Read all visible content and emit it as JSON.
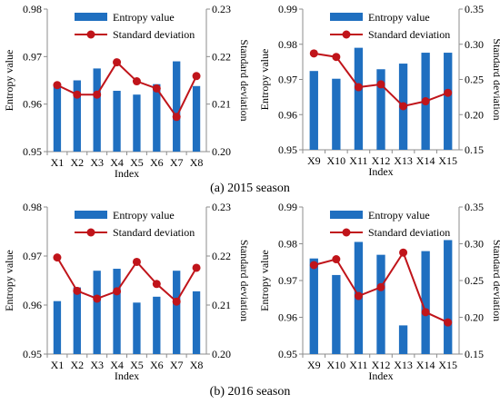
{
  "colors": {
    "bar": "#1f6fc0",
    "line": "#c0141a",
    "axis": "#8c8c8c",
    "legend_line": "#c0141a"
  },
  "captions": {
    "top": "(a) 2015 season",
    "bottom": "(b) 2016 season"
  },
  "chart_data": [
    {
      "type": "bar+line",
      "xlabel": "Index",
      "ylabel_left": "Entropy value",
      "ylabel_right": "Standard deviation",
      "legend": [
        "Entropy value",
        "Standard deviation"
      ],
      "categories": [
        "X1",
        "X2",
        "X3",
        "X4",
        "X5",
        "X6",
        "X7",
        "X8"
      ],
      "ylim_left": [
        0.95,
        0.98
      ],
      "yticks_left": [
        "0.95",
        "0.96",
        "0.97",
        "0.98"
      ],
      "ylim_right": [
        0.2,
        0.23
      ],
      "yticks_right": [
        "0.20",
        "0.21",
        "0.22",
        "0.23"
      ],
      "bars": [
        0.964,
        0.965,
        0.9675,
        0.9628,
        0.962,
        0.9642,
        0.969,
        0.9638
      ],
      "line": [
        0.214,
        0.212,
        0.212,
        0.2188,
        0.2148,
        0.2133,
        0.2073,
        0.2159
      ]
    },
    {
      "type": "bar+line",
      "xlabel": "Index",
      "ylabel_left": "Entropy value",
      "ylabel_right": "Standard deviation",
      "legend": [
        "Entropy value",
        "Standard deviation"
      ],
      "categories": [
        "X9",
        "X10",
        "X11",
        "X12",
        "X13",
        "X14",
        "X15"
      ],
      "ylim_left": [
        0.95,
        0.99
      ],
      "yticks_left": [
        "0.95",
        "0.96",
        "0.97",
        "0.98",
        "0.99"
      ],
      "ylim_right": [
        0.15,
        0.35
      ],
      "yticks_right": [
        "0.15",
        "0.20",
        "0.25",
        "0.30",
        "0.35"
      ],
      "bars": [
        0.9724,
        0.9702,
        0.979,
        0.9729,
        0.9745,
        0.9776,
        0.9776
      ],
      "line": [
        0.287,
        0.282,
        0.239,
        0.243,
        0.212,
        0.219,
        0.231
      ]
    },
    {
      "type": "bar+line",
      "xlabel": "Index",
      "ylabel_left": "Entropy value",
      "ylabel_right": "Standard deviation",
      "legend": [
        "Entropy value",
        "Standard deviation"
      ],
      "categories": [
        "X1",
        "X2",
        "X3",
        "X4",
        "X5",
        "X6",
        "X7",
        "X8"
      ],
      "ylim_left": [
        0.95,
        0.98
      ],
      "yticks_left": [
        "0.95",
        "0.96",
        "0.97",
        "0.98"
      ],
      "ylim_right": [
        0.2,
        0.23
      ],
      "yticks_right": [
        "0.20",
        "0.21",
        "0.22",
        "0.23"
      ],
      "bars": [
        0.9608,
        0.9636,
        0.967,
        0.9674,
        0.9605,
        0.9617,
        0.967,
        0.9628
      ],
      "line": [
        0.2197,
        0.2129,
        0.2113,
        0.2128,
        0.2188,
        0.2143,
        0.2107,
        0.2176
      ]
    },
    {
      "type": "bar+line",
      "xlabel": "Index",
      "ylabel_left": "Entropy value",
      "ylabel_right": "Standard deviation",
      "legend": [
        "Entropy value",
        "Standard deviation"
      ],
      "categories": [
        "X9",
        "X10",
        "X11",
        "X12",
        "X13",
        "X14",
        "X15"
      ],
      "ylim_left": [
        0.95,
        0.99
      ],
      "yticks_left": [
        "0.95",
        "0.96",
        "0.97",
        "0.98",
        "0.99"
      ],
      "ylim_right": [
        0.15,
        0.35
      ],
      "yticks_right": [
        "0.15",
        "0.20",
        "0.25",
        "0.30",
        "0.35"
      ],
      "bars": [
        0.976,
        0.9715,
        0.9805,
        0.977,
        0.9578,
        0.978,
        0.981
      ],
      "line": [
        0.271,
        0.279,
        0.229,
        0.241,
        0.288,
        0.207,
        0.193
      ]
    }
  ]
}
